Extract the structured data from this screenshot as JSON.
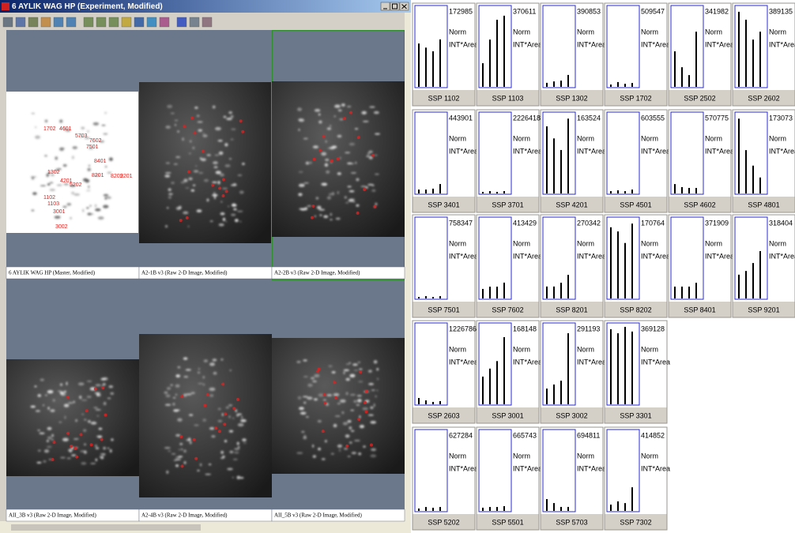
{
  "window": {
    "title": "6 AYLIK WAG HP (Experiment, Modified)",
    "gels": [
      {
        "caption": "6 AYLIK WAG HP (Master, Modified)",
        "spots": [
          "1702",
          "4601",
          "5703",
          "7602",
          "7501",
          "8401",
          "8201",
          "8202",
          "9201",
          "1302",
          "4201",
          "5202",
          "1102",
          "1103",
          "3001",
          "3002"
        ]
      },
      {
        "caption": "A2-1B v3 (Raw 2-D Image, Modified)"
      },
      {
        "caption": "A2-2B v3 (Raw 2-D Image, Modified)"
      },
      {
        "caption": "AII_3B v3 (Raw 2-D Image, Modified)"
      },
      {
        "caption": "A2-4B v3 (Raw 2-D Image, Modified)"
      },
      {
        "caption": "AII_5B v3 (Raw 2-D Image, Modified)"
      }
    ]
  },
  "plots": {
    "norm_label": "Norm",
    "measure_label": "INT*Area",
    "items": [
      {
        "ssp": "SSP 1102",
        "max": 172985,
        "values": [
          95000,
          86000,
          78000,
          104000
        ]
      },
      {
        "ssp": "SSP 1103",
        "max": 370611,
        "values": [
          111000,
          222000,
          315000,
          334000
        ]
      },
      {
        "ssp": "SSP 1302",
        "max": 390853,
        "values": [
          20000,
          27000,
          31000,
          59000
        ]
      },
      {
        "ssp": "SSP 1702",
        "max": 509547,
        "values": [
          15000,
          31000,
          20000,
          25000
        ]
      },
      {
        "ssp": "SSP 2502",
        "max": 341982,
        "values": [
          154000,
          85000,
          51000,
          239000
        ]
      },
      {
        "ssp": "SSP 2602",
        "max": 389135,
        "values": [
          370000,
          331000,
          233000,
          272000
        ]
      },
      {
        "ssp": "SSP 3401",
        "max": 443901,
        "values": [
          22000,
          22000,
          27000,
          53000
        ]
      },
      {
        "ssp": "SSP 3701",
        "max": 2226418,
        "values": [
          45000,
          67000,
          45000,
          67000
        ]
      },
      {
        "ssp": "SSP 4201",
        "max": 163524,
        "values": [
          139000,
          114000,
          90000,
          155000
        ]
      },
      {
        "ssp": "SSP 4501",
        "max": 603555,
        "values": [
          18000,
          24000,
          18000,
          30000
        ]
      },
      {
        "ssp": "SSP 4602",
        "max": 570775,
        "values": [
          68000,
          46000,
          40000,
          40000
        ]
      },
      {
        "ssp": "SSP 4801",
        "max": 173073,
        "values": [
          164000,
          95000,
          61000,
          35000
        ]
      },
      {
        "ssp": "SSP 7501",
        "max": 758347,
        "values": [
          15000,
          23000,
          15000,
          23000
        ]
      },
      {
        "ssp": "SSP 7602",
        "max": 413429,
        "values": [
          50000,
          62000,
          62000,
          83000
        ]
      },
      {
        "ssp": "SSP 8201",
        "max": 270342,
        "values": [
          41000,
          41000,
          54000,
          81000
        ]
      },
      {
        "ssp": "SSP 8202",
        "max": 170764,
        "values": [
          154000,
          145000,
          120000,
          162000
        ]
      },
      {
        "ssp": "SSP 8401",
        "max": 371909,
        "values": [
          56000,
          56000,
          56000,
          74000
        ]
      },
      {
        "ssp": "SSP 9201",
        "max": 318404,
        "values": [
          96000,
          111000,
          143000,
          191000
        ]
      },
      {
        "ssp": "SSP 2603",
        "max": 1226786,
        "values": [
          98000,
          61000,
          37000,
          49000
        ]
      },
      {
        "ssp": "SSP 3001",
        "max": 168148,
        "values": [
          59000,
          76000,
          92000,
          143000
        ]
      },
      {
        "ssp": "SSP 3002",
        "max": 291193,
        "values": [
          58000,
          73000,
          87000,
          262000
        ]
      },
      {
        "ssp": "SSP 3301",
        "max": 369128,
        "values": [
          351000,
          332000,
          362000,
          340000
        ]
      },
      {
        "ssp": "SSP 5202",
        "max": 627284,
        "values": [
          19000,
          31000,
          25000,
          31000
        ]
      },
      {
        "ssp": "SSP 5501",
        "max": 665743,
        "values": [
          27000,
          33000,
          33000,
          40000
        ]
      },
      {
        "ssp": "SSP 5703",
        "max": 694811,
        "values": [
          104000,
          69000,
          35000,
          35000
        ]
      },
      {
        "ssp": "SSP 7302",
        "max": 414852,
        "values": [
          33000,
          50000,
          41000,
          124000
        ]
      }
    ]
  }
}
